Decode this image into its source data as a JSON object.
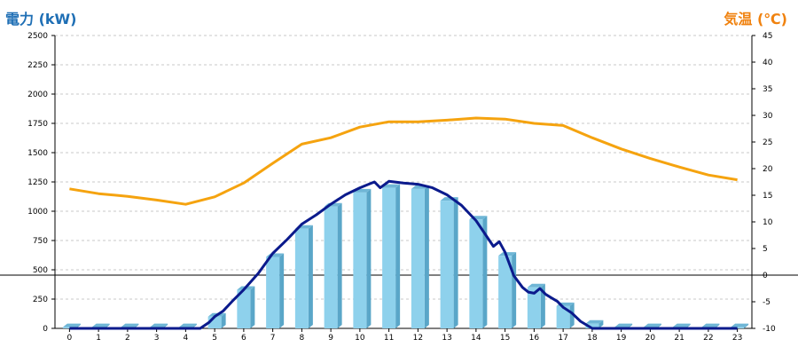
{
  "chart_data": {
    "type": "bar",
    "left_axis_title": "電力 (kW)",
    "right_axis_title": "気温 (℃)",
    "categories": [
      "0",
      "1",
      "2",
      "3",
      "4",
      "5",
      "6",
      "7",
      "8",
      "9",
      "10",
      "11",
      "12",
      "13",
      "14",
      "15",
      "16",
      "17",
      "18",
      "19",
      "20",
      "21",
      "22",
      "23"
    ],
    "ylim": [
      0,
      2500
    ],
    "yticks": [
      0,
      250,
      500,
      750,
      1000,
      1250,
      1500,
      1750,
      2000,
      2250,
      2500
    ],
    "y2lim": [
      -10,
      45
    ],
    "y2ticks": [
      -10,
      -5,
      0,
      5,
      10,
      15,
      20,
      25,
      30,
      35,
      40,
      45
    ],
    "grid": true,
    "colors": {
      "left_title": "#1f6fb5",
      "right_title": "#f0820f",
      "bar_front": "#8ed1ec",
      "bar_side": "#5aa6c8",
      "bar_top": "#6fb6d6",
      "power_line": "#0b1a8c",
      "temp_line": "#f5a30f",
      "grid": "#c8c8c8",
      "zero_line": "#000000"
    },
    "series": [
      {
        "kind": "bar",
        "axis": "left",
        "values": [
          10,
          10,
          10,
          10,
          10,
          100,
          330,
          610,
          850,
          1040,
          1160,
          1200,
          1190,
          1090,
          930,
          620,
          350,
          190,
          40,
          10,
          10,
          10,
          10,
          10
        ]
      },
      {
        "kind": "line",
        "axis": "left",
        "x": [
          0,
          4.5,
          4.8,
          5,
          5.3,
          5.6,
          6,
          6.5,
          7,
          7.5,
          8,
          8.5,
          9,
          9.5,
          10,
          10.3,
          10.5,
          10.7,
          11,
          11.5,
          12,
          12.5,
          13,
          13.5,
          14,
          14.3,
          14.6,
          14.8,
          15,
          15.3,
          15.6,
          15.8,
          16,
          16.2,
          16.4,
          16.6,
          16.8,
          17,
          17.3,
          17.6,
          18,
          19,
          20,
          21,
          22,
          23
        ],
        "values": [
          0,
          0,
          50,
          100,
          150,
          230,
          330,
          470,
          640,
          760,
          890,
          970,
          1060,
          1140,
          1200,
          1230,
          1250,
          1200,
          1255,
          1240,
          1230,
          1200,
          1140,
          1050,
          920,
          810,
          700,
          740,
          650,
          450,
          350,
          310,
          300,
          340,
          290,
          260,
          230,
          180,
          130,
          60,
          0,
          0,
          0,
          0,
          0,
          0
        ]
      },
      {
        "kind": "line",
        "axis": "right",
        "x": [
          0,
          1,
          2,
          3,
          4,
          5,
          6,
          7,
          8,
          9,
          10,
          11,
          12,
          13,
          14,
          15,
          16,
          17,
          18,
          19,
          20,
          21,
          22,
          23
        ],
        "values": [
          16.2,
          15.3,
          14.8,
          14.1,
          13.3,
          14.7,
          17.3,
          21.0,
          24.6,
          25.8,
          27.8,
          28.8,
          28.8,
          29.1,
          29.5,
          29.3,
          28.5,
          28.1,
          25.8,
          23.7,
          21.9,
          20.3,
          18.8,
          17.9
        ]
      }
    ]
  }
}
